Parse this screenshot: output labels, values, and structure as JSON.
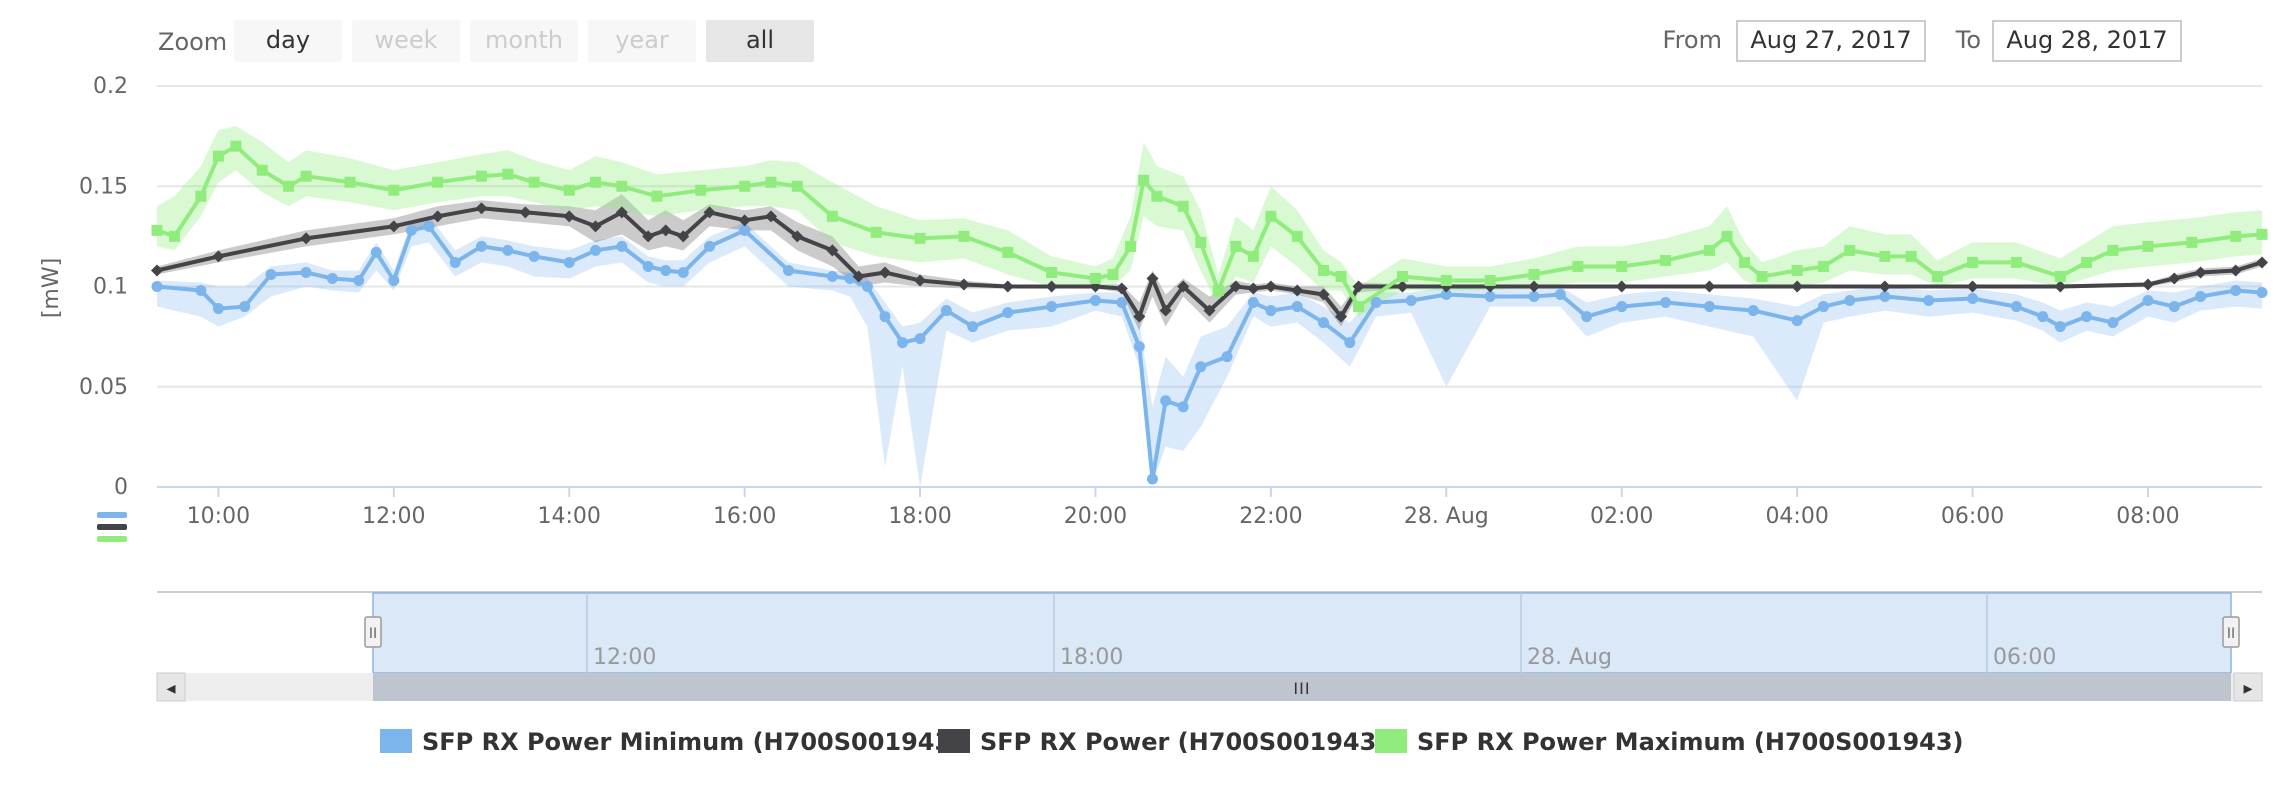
{
  "range_selector": {
    "zoom_label": "Zoom",
    "buttons": [
      {
        "label": "day",
        "state": "normal"
      },
      {
        "label": "week",
        "state": "disabled"
      },
      {
        "label": "month",
        "state": "disabled"
      },
      {
        "label": "year",
        "state": "disabled"
      },
      {
        "label": "all",
        "state": "selected"
      }
    ],
    "from_label": "From",
    "from_value": "Aug 27, 2017",
    "to_label": "To",
    "to_value": "Aug 28, 2017"
  },
  "navigator": {
    "tick_labels": [
      "12:00",
      "18:00",
      "28. Aug",
      "06:00"
    ],
    "scrollbar_grip": "III",
    "handle_grip": "II",
    "left_arrow": "◂",
    "right_arrow": "▸"
  },
  "colors": {
    "min": "#7cb5ec",
    "avg": "#434348",
    "max": "#90ed7d"
  },
  "chart_data": {
    "type": "line",
    "ylabel": "[mW]",
    "ylim": [
      0,
      0.2
    ],
    "yticks": [
      "0",
      "0.05",
      "0.1",
      "0.15",
      "0.2"
    ],
    "xlim_hours": [
      9.3,
      33.3
    ],
    "xticks": [
      {
        "h": 10,
        "label": "10:00"
      },
      {
        "h": 12,
        "label": "12:00"
      },
      {
        "h": 14,
        "label": "14:00"
      },
      {
        "h": 16,
        "label": "16:00"
      },
      {
        "h": 18,
        "label": "18:00"
      },
      {
        "h": 20,
        "label": "20:00"
      },
      {
        "h": 22,
        "label": "22:00"
      },
      {
        "h": 24,
        "label": "28. Aug"
      },
      {
        "h": 26,
        "label": "02:00"
      },
      {
        "h": 28,
        "label": "04:00"
      },
      {
        "h": 30,
        "label": "06:00"
      },
      {
        "h": 32,
        "label": "08:00"
      }
    ],
    "legend": [
      {
        "key": "min",
        "label": "SFP RX Power Minimum (H700S001943)"
      },
      {
        "key": "avg",
        "label": "SFP RX Power (H700S001943)"
      },
      {
        "key": "max",
        "label": "SFP RX Power Maximum (H700S001943)"
      }
    ],
    "series": [
      {
        "name": "SFP RX Power Minimum (H700S001943)",
        "key": "min",
        "x": [
          9.3,
          9.8,
          10.0,
          10.3,
          10.6,
          11.0,
          11.3,
          11.6,
          11.8,
          12.0,
          12.2,
          12.4,
          12.7,
          13.0,
          13.3,
          13.6,
          14.0,
          14.3,
          14.6,
          14.9,
          15.1,
          15.3,
          15.6,
          16.0,
          16.5,
          17.0,
          17.2,
          17.4,
          17.6,
          17.8,
          18.0,
          18.3,
          18.6,
          19.0,
          19.5,
          20.0,
          20.3,
          20.5,
          20.65,
          20.8,
          21.0,
          21.2,
          21.5,
          21.8,
          22.0,
          22.3,
          22.6,
          22.9,
          23.2,
          23.6,
          24.0,
          24.5,
          25.0,
          25.3,
          25.6,
          26.0,
          26.5,
          27.0,
          27.5,
          28.0,
          28.3,
          28.6,
          29.0,
          29.5,
          30.0,
          30.5,
          30.8,
          31.0,
          31.3,
          31.6,
          32.0,
          32.3,
          32.6,
          33.0,
          33.3
        ],
        "values": [
          0.1,
          0.098,
          0.089,
          0.09,
          0.106,
          0.107,
          0.104,
          0.103,
          0.117,
          0.103,
          0.128,
          0.13,
          0.112,
          0.12,
          0.118,
          0.115,
          0.112,
          0.118,
          0.12,
          0.11,
          0.108,
          0.107,
          0.12,
          0.128,
          0.108,
          0.105,
          0.104,
          0.1,
          0.085,
          0.072,
          0.074,
          0.088,
          0.08,
          0.087,
          0.09,
          0.093,
          0.092,
          0.07,
          0.004,
          0.043,
          0.04,
          0.06,
          0.065,
          0.092,
          0.088,
          0.09,
          0.082,
          0.072,
          0.092,
          0.093,
          0.096,
          0.095,
          0.095,
          0.096,
          0.085,
          0.09,
          0.092,
          0.09,
          0.088,
          0.083,
          0.09,
          0.093,
          0.095,
          0.093,
          0.094,
          0.09,
          0.085,
          0.08,
          0.085,
          0.082,
          0.093,
          0.09,
          0.095,
          0.098,
          0.097
        ]
      },
      {
        "name": "SFP RX Power (H700S001943)",
        "key": "avg",
        "x": [
          9.3,
          10.0,
          11.0,
          12.0,
          12.5,
          13.0,
          13.5,
          14.0,
          14.3,
          14.6,
          14.9,
          15.1,
          15.3,
          15.6,
          16.0,
          16.3,
          16.6,
          17.0,
          17.3,
          17.6,
          18.0,
          18.5,
          19.0,
          19.5,
          20.0,
          20.3,
          20.5,
          20.65,
          20.8,
          21.0,
          21.3,
          21.6,
          21.8,
          22.0,
          22.3,
          22.6,
          22.8,
          23.0,
          23.5,
          24.0,
          24.5,
          25.0,
          26.0,
          27.0,
          28.0,
          29.0,
          30.0,
          31.0,
          32.0,
          32.3,
          32.6,
          33.0,
          33.3
        ],
        "values": [
          0.108,
          0.115,
          0.124,
          0.13,
          0.135,
          0.139,
          0.137,
          0.135,
          0.13,
          0.137,
          0.125,
          0.128,
          0.125,
          0.137,
          0.133,
          0.135,
          0.125,
          0.118,
          0.105,
          0.107,
          0.103,
          0.101,
          0.1,
          0.1,
          0.1,
          0.099,
          0.085,
          0.104,
          0.088,
          0.1,
          0.088,
          0.1,
          0.099,
          0.1,
          0.098,
          0.096,
          0.085,
          0.1,
          0.1,
          0.1,
          0.1,
          0.1,
          0.1,
          0.1,
          0.1,
          0.1,
          0.1,
          0.1,
          0.101,
          0.104,
          0.107,
          0.108,
          0.112
        ]
      },
      {
        "name": "SFP RX Power Maximum (H700S001943)",
        "key": "max",
        "x": [
          9.3,
          9.5,
          9.8,
          10.0,
          10.2,
          10.5,
          10.8,
          11.0,
          11.5,
          12.0,
          12.5,
          13.0,
          13.3,
          13.6,
          14.0,
          14.3,
          14.6,
          15.0,
          15.5,
          16.0,
          16.3,
          16.6,
          17.0,
          17.5,
          18.0,
          18.5,
          19.0,
          19.5,
          20.0,
          20.2,
          20.4,
          20.55,
          20.7,
          21.0,
          21.2,
          21.4,
          21.6,
          21.8,
          22.0,
          22.3,
          22.6,
          22.8,
          23.0,
          23.5,
          24.0,
          24.5,
          25.0,
          25.5,
          26.0,
          26.5,
          27.0,
          27.2,
          27.4,
          27.6,
          28.0,
          28.3,
          28.6,
          29.0,
          29.3,
          29.6,
          30.0,
          30.5,
          31.0,
          31.3,
          31.6,
          32.0,
          32.5,
          33.0,
          33.3
        ],
        "values": [
          0.128,
          0.125,
          0.145,
          0.165,
          0.17,
          0.158,
          0.15,
          0.155,
          0.152,
          0.148,
          0.152,
          0.155,
          0.156,
          0.152,
          0.148,
          0.152,
          0.15,
          0.145,
          0.148,
          0.15,
          0.152,
          0.15,
          0.135,
          0.127,
          0.124,
          0.125,
          0.117,
          0.107,
          0.104,
          0.106,
          0.12,
          0.153,
          0.145,
          0.14,
          0.122,
          0.098,
          0.12,
          0.115,
          0.135,
          0.125,
          0.108,
          0.105,
          0.09,
          0.105,
          0.103,
          0.103,
          0.106,
          0.11,
          0.11,
          0.113,
          0.118,
          0.125,
          0.112,
          0.105,
          0.108,
          0.11,
          0.118,
          0.115,
          0.115,
          0.105,
          0.112,
          0.112,
          0.105,
          0.112,
          0.118,
          0.12,
          0.122,
          0.125,
          0.126
        ]
      }
    ],
    "bands": [
      {
        "key": "min",
        "x": [
          9.3,
          9.8,
          10.0,
          10.3,
          10.6,
          11.0,
          11.3,
          11.6,
          11.8,
          12.0,
          12.2,
          12.4,
          12.7,
          13.0,
          13.3,
          13.6,
          14.0,
          14.3,
          14.6,
          14.9,
          15.1,
          15.3,
          15.6,
          16.0,
          16.5,
          17.0,
          17.2,
          17.4,
          17.6,
          17.8,
          18.0,
          18.3,
          18.6,
          19.0,
          19.5,
          20.0,
          20.3,
          20.5,
          20.65,
          20.8,
          21.0,
          21.2,
          21.5,
          21.8,
          22.0,
          22.3,
          22.6,
          22.9,
          23.2,
          23.6,
          24.0,
          24.5,
          25.0,
          25.3,
          25.6,
          26.0,
          26.5,
          27.0,
          27.5,
          28.0,
          28.3,
          28.6,
          29.0,
          29.5,
          30.0,
          30.5,
          30.8,
          31.0,
          31.3,
          31.6,
          32.0,
          32.3,
          32.6,
          33.0,
          33.3
        ],
        "low": [
          0.09,
          0.085,
          0.08,
          0.085,
          0.095,
          0.1,
          0.098,
          0.097,
          0.108,
          0.098,
          0.12,
          0.122,
          0.105,
          0.112,
          0.11,
          0.105,
          0.104,
          0.11,
          0.112,
          0.102,
          0.1,
          0.1,
          0.112,
          0.12,
          0.1,
          0.098,
          0.095,
          0.08,
          0.01,
          0.06,
          0.0,
          0.078,
          0.072,
          0.078,
          0.08,
          0.088,
          0.085,
          0.06,
          0.002,
          0.02,
          0.018,
          0.03,
          0.055,
          0.085,
          0.08,
          0.082,
          0.072,
          0.06,
          0.085,
          0.087,
          0.05,
          0.09,
          0.09,
          0.09,
          0.075,
          0.082,
          0.085,
          0.08,
          0.075,
          0.043,
          0.082,
          0.085,
          0.088,
          0.085,
          0.087,
          0.083,
          0.078,
          0.072,
          0.078,
          0.075,
          0.085,
          0.082,
          0.088,
          0.09,
          0.089
        ],
        "high": [
          0.103,
          0.102,
          0.1,
          0.1,
          0.11,
          0.112,
          0.108,
          0.108,
          0.122,
          0.108,
          0.132,
          0.135,
          0.118,
          0.125,
          0.123,
          0.12,
          0.118,
          0.123,
          0.125,
          0.115,
          0.113,
          0.113,
          0.125,
          0.132,
          0.112,
          0.108,
          0.107,
          0.104,
          0.092,
          0.08,
          0.082,
          0.094,
          0.087,
          0.092,
          0.095,
          0.097,
          0.097,
          0.082,
          0.04,
          0.065,
          0.055,
          0.075,
          0.08,
          0.097,
          0.095,
          0.097,
          0.09,
          0.082,
          0.097,
          0.097,
          0.1,
          0.099,
          0.099,
          0.1,
          0.092,
          0.096,
          0.098,
          0.096,
          0.094,
          0.09,
          0.096,
          0.098,
          0.1,
          0.098,
          0.099,
          0.096,
          0.092,
          0.088,
          0.092,
          0.09,
          0.098,
          0.097,
          0.1,
          0.103,
          0.102
        ]
      },
      {
        "key": "avg",
        "x": [
          9.3,
          10.0,
          11.0,
          12.0,
          12.5,
          13.0,
          13.5,
          14.0,
          14.3,
          14.6,
          14.9,
          15.1,
          15.3,
          15.6,
          16.0,
          16.3,
          16.6,
          17.0,
          17.3,
          17.6,
          18.0,
          18.5,
          19.0,
          19.5,
          20.0,
          20.3,
          20.5,
          20.65,
          20.8,
          21.0,
          21.3,
          21.6,
          21.8,
          22.0,
          22.3,
          22.6,
          22.8,
          23.0,
          23.5,
          24.0,
          24.5,
          25.0,
          26.0,
          27.0,
          28.0,
          29.0,
          30.0,
          31.0,
          32.0,
          32.3,
          32.6,
          33.0,
          33.3
        ],
        "low": [
          0.106,
          0.112,
          0.12,
          0.126,
          0.13,
          0.134,
          0.132,
          0.13,
          0.122,
          0.126,
          0.118,
          0.12,
          0.118,
          0.13,
          0.128,
          0.128,
          0.118,
          0.11,
          0.1,
          0.102,
          0.1,
          0.099,
          0.099,
          0.099,
          0.099,
          0.097,
          0.078,
          0.095,
          0.08,
          0.095,
          0.082,
          0.096,
          0.097,
          0.098,
          0.096,
          0.092,
          0.08,
          0.097,
          0.099,
          0.099,
          0.099,
          0.099,
          0.099,
          0.099,
          0.099,
          0.099,
          0.099,
          0.099,
          0.1,
          0.102,
          0.105,
          0.106,
          0.11
        ],
        "high": [
          0.11,
          0.118,
          0.128,
          0.134,
          0.14,
          0.143,
          0.141,
          0.14,
          0.138,
          0.146,
          0.133,
          0.138,
          0.133,
          0.141,
          0.138,
          0.14,
          0.132,
          0.125,
          0.11,
          0.112,
          0.106,
          0.103,
          0.101,
          0.101,
          0.101,
          0.101,
          0.092,
          0.108,
          0.096,
          0.104,
          0.095,
          0.103,
          0.101,
          0.102,
          0.1,
          0.1,
          0.09,
          0.102,
          0.101,
          0.101,
          0.101,
          0.101,
          0.101,
          0.101,
          0.101,
          0.101,
          0.101,
          0.101,
          0.102,
          0.106,
          0.109,
          0.11,
          0.114
        ]
      },
      {
        "key": "max",
        "x": [
          9.3,
          9.5,
          9.8,
          10.0,
          10.2,
          10.5,
          10.8,
          11.0,
          11.5,
          12.0,
          12.5,
          13.0,
          13.3,
          13.6,
          14.0,
          14.3,
          14.6,
          15.0,
          15.5,
          16.0,
          16.3,
          16.6,
          17.0,
          17.5,
          18.0,
          18.5,
          19.0,
          19.5,
          20.0,
          20.2,
          20.4,
          20.55,
          20.7,
          21.0,
          21.2,
          21.4,
          21.6,
          21.8,
          22.0,
          22.3,
          22.6,
          22.8,
          23.0,
          23.5,
          24.0,
          24.5,
          25.0,
          25.5,
          26.0,
          26.5,
          27.0,
          27.2,
          27.4,
          27.6,
          28.0,
          28.3,
          28.6,
          29.0,
          29.3,
          29.6,
          30.0,
          30.5,
          31.0,
          31.3,
          31.6,
          32.0,
          32.5,
          33.0,
          33.3
        ],
        "low": [
          0.12,
          0.118,
          0.135,
          0.152,
          0.158,
          0.147,
          0.14,
          0.145,
          0.142,
          0.138,
          0.142,
          0.145,
          0.145,
          0.142,
          0.138,
          0.14,
          0.138,
          0.135,
          0.138,
          0.14,
          0.14,
          0.138,
          0.122,
          0.115,
          0.112,
          0.114,
          0.106,
          0.1,
          0.099,
          0.1,
          0.108,
          0.135,
          0.13,
          0.128,
          0.108,
          0.09,
          0.105,
          0.102,
          0.12,
          0.11,
          0.098,
          0.098,
          0.085,
          0.098,
          0.098,
          0.098,
          0.1,
          0.102,
          0.102,
          0.105,
          0.108,
          0.112,
          0.103,
          0.099,
          0.1,
          0.102,
          0.108,
          0.106,
          0.106,
          0.1,
          0.104,
          0.104,
          0.1,
          0.104,
          0.108,
          0.11,
          0.112,
          0.115,
          0.116
        ],
        "high": [
          0.14,
          0.145,
          0.16,
          0.178,
          0.18,
          0.172,
          0.162,
          0.168,
          0.164,
          0.158,
          0.162,
          0.166,
          0.168,
          0.163,
          0.158,
          0.165,
          0.162,
          0.156,
          0.158,
          0.16,
          0.163,
          0.162,
          0.152,
          0.14,
          0.133,
          0.134,
          0.128,
          0.115,
          0.11,
          0.114,
          0.135,
          0.172,
          0.16,
          0.155,
          0.138,
          0.106,
          0.135,
          0.128,
          0.15,
          0.138,
          0.118,
          0.112,
          0.1,
          0.114,
          0.11,
          0.11,
          0.114,
          0.12,
          0.12,
          0.124,
          0.13,
          0.14,
          0.122,
          0.112,
          0.118,
          0.12,
          0.13,
          0.126,
          0.126,
          0.113,
          0.122,
          0.122,
          0.114,
          0.122,
          0.13,
          0.132,
          0.134,
          0.137,
          0.138
        ]
      }
    ]
  }
}
